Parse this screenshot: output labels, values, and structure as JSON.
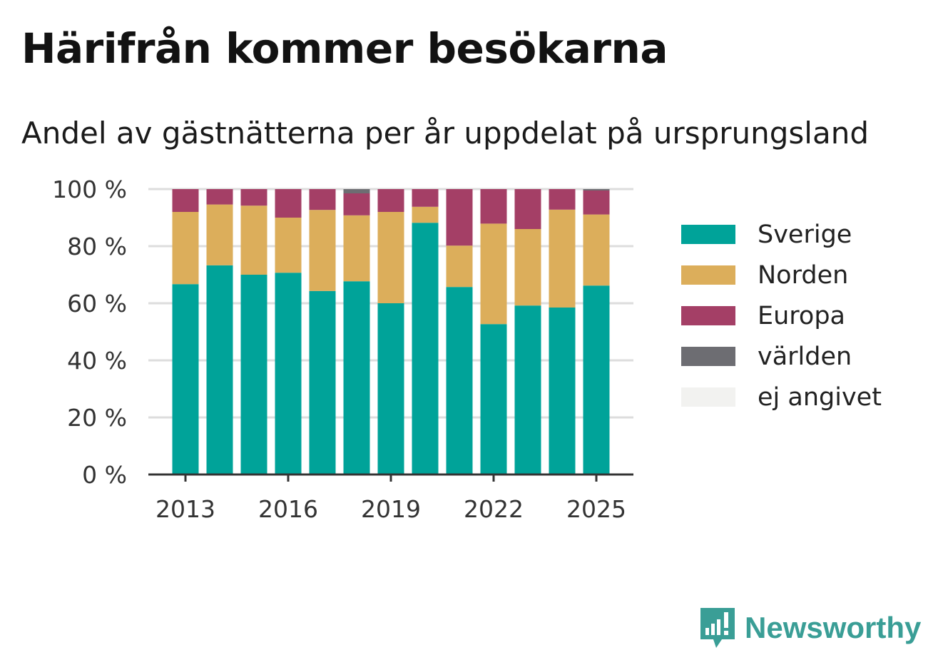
{
  "title": "Härifrån kommer besökarna",
  "subtitle": "Andel av gästnätterna per år uppdelat på ursprungsland",
  "brand": {
    "name": "Newsworthy",
    "icon": "newsworthy-logo-icon",
    "color": "#3a9e96"
  },
  "chart_data": {
    "type": "bar",
    "stacked": true,
    "categories": [
      "2013",
      "2014",
      "2015",
      "2016",
      "2017",
      "2018",
      "2019",
      "2020",
      "2021",
      "2022",
      "2023",
      "2024",
      "2025"
    ],
    "x_tick_labels": [
      "2013",
      "2016",
      "2019",
      "2022",
      "2025"
    ],
    "y_ticks": [
      0,
      20,
      40,
      60,
      80,
      100
    ],
    "y_tick_labels": [
      "0 %",
      "20 %",
      "40 %",
      "60 %",
      "80 %",
      "100 %"
    ],
    "ylim": [
      0,
      100
    ],
    "grid": true,
    "legend_position": "right",
    "series": [
      {
        "name": "Sverige",
        "color": "#00a399",
        "values": [
          66.7,
          73.3,
          70.0,
          70.7,
          64.3,
          67.7,
          60.0,
          88.2,
          65.7,
          52.7,
          59.2,
          58.5,
          66.2
        ]
      },
      {
        "name": "Norden",
        "color": "#dcae5b",
        "values": [
          25.3,
          21.3,
          24.2,
          19.3,
          28.4,
          23.1,
          32.0,
          5.6,
          14.5,
          35.2,
          26.8,
          34.3,
          24.9
        ]
      },
      {
        "name": "Europa",
        "color": "#a43f66",
        "values": [
          8.0,
          5.4,
          5.8,
          10.0,
          7.3,
          7.7,
          8.0,
          6.2,
          19.8,
          12.1,
          14.0,
          7.2,
          8.4
        ]
      },
      {
        "name": "världen",
        "color": "#6d6d72",
        "values": [
          0,
          0,
          0,
          0,
          0,
          1.5,
          0,
          0,
          0,
          0,
          0,
          0,
          0.5
        ]
      },
      {
        "name": "ej angivet",
        "color": "#f2f2f0",
        "values": [
          0,
          0,
          0,
          0,
          0,
          0,
          0,
          0,
          0,
          0,
          0,
          0,
          0
        ]
      }
    ]
  }
}
